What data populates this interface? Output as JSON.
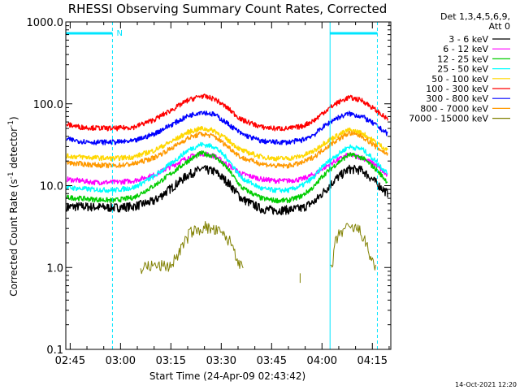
{
  "chart_data": {
    "type": "line",
    "title": "RHESSI Observing Summary Count Rates, Corrected",
    "xlabel": "Start Time (24-Apr-09 02:43:42)",
    "ylabel_main": "Corrected Count Rate (s",
    "ylabel_sup1": "-1",
    "ylabel_mid": " detector",
    "ylabel_sup2": "-1",
    "ylabel_end": ")",
    "yscale": "log",
    "ylim": [
      0.1,
      1000
    ],
    "xlim_minutes": [
      163.7,
      260.5
    ],
    "x_ticks": [
      {
        "label": "02:45",
        "minutes": 165
      },
      {
        "label": "03:00",
        "minutes": 180
      },
      {
        "label": "03:15",
        "minutes": 195
      },
      {
        "label": "03:30",
        "minutes": 210
      },
      {
        "label": "03:45",
        "minutes": 225
      },
      {
        "label": "04:00",
        "minutes": 240
      },
      {
        "label": "04:15",
        "minutes": 255
      }
    ],
    "y_ticks": [
      {
        "label": "0.1",
        "value": 0.1
      },
      {
        "label": "1.0",
        "value": 1
      },
      {
        "label": "10.0",
        "value": 10
      },
      {
        "label": "100.0",
        "value": 100
      },
      {
        "label": "1000.0",
        "value": 1000
      }
    ],
    "legend_header": [
      "Det 1,3,4,5,6,9,",
      "Att 0"
    ],
    "legend_position": "right",
    "flag_label": "N",
    "night_intervals_minutes": [
      [
        163.7,
        177.6
      ],
      [
        242.4,
        256.5
      ]
    ],
    "series": [
      {
        "name": "3 - 6 keV",
        "color": "#000000",
        "x": [
          164,
          168,
          172,
          178,
          184,
          190,
          196,
          200,
          204,
          208,
          212,
          216,
          222,
          226,
          230,
          234,
          238,
          240,
          244,
          248,
          252,
          256,
          259.6
        ],
        "y": [
          5.5,
          5.6,
          5.5,
          5.4,
          5.6,
          6.5,
          10,
          13.5,
          16,
          15,
          11,
          7,
          5.2,
          5.0,
          5.1,
          5.3,
          6.5,
          8,
          12,
          16,
          15.5,
          11,
          8
        ]
      },
      {
        "name": "6 - 12 keV",
        "color": "#ff00ff",
        "x": [
          164,
          168,
          172,
          178,
          184,
          190,
          196,
          200,
          204,
          208,
          212,
          216,
          222,
          226,
          230,
          234,
          238,
          240,
          244,
          248,
          252,
          256,
          259.6
        ],
        "y": [
          12,
          11.5,
          11,
          11,
          11.5,
          13.5,
          18,
          22,
          25,
          23,
          18,
          14,
          12,
          11.5,
          11.5,
          12,
          14,
          16,
          20,
          24,
          22,
          18,
          13
        ]
      },
      {
        "name": "12 - 25 keV",
        "color": "#00cc00",
        "x": [
          164,
          168,
          172,
          178,
          184,
          190,
          196,
          200,
          204,
          208,
          212,
          216,
          222,
          226,
          230,
          234,
          238,
          240,
          244,
          248,
          252,
          256,
          259.6
        ],
        "y": [
          7.2,
          7,
          6.8,
          6.6,
          7.2,
          10,
          15,
          20,
          25,
          23,
          16,
          9.5,
          7,
          6.6,
          6.6,
          7.5,
          10,
          13,
          18,
          24,
          22,
          16,
          11
        ]
      },
      {
        "name": "25 - 50 keV",
        "color": "#00ffff",
        "x": [
          164,
          168,
          172,
          178,
          184,
          190,
          196,
          200,
          204,
          208,
          212,
          216,
          222,
          226,
          230,
          234,
          238,
          240,
          244,
          248,
          252,
          256,
          259.6
        ],
        "y": [
          9.5,
          9.2,
          9,
          8.8,
          9.5,
          13,
          20,
          27,
          32,
          30,
          21,
          12.5,
          9.2,
          8.8,
          8.8,
          10,
          13,
          17,
          23,
          30,
          28,
          20,
          14
        ]
      },
      {
        "name": "50 - 100 keV",
        "color": "#ffd700",
        "x": [
          164,
          168,
          172,
          178,
          184,
          190,
          196,
          200,
          204,
          208,
          212,
          216,
          222,
          226,
          230,
          234,
          238,
          240,
          244,
          248,
          252,
          256,
          259.6
        ],
        "y": [
          23,
          22.5,
          22,
          21.5,
          22.5,
          27,
          36,
          45,
          50,
          47,
          36,
          27,
          22.5,
          21.5,
          21.5,
          23,
          27,
          32,
          40,
          48,
          44,
          34,
          27
        ]
      },
      {
        "name": "100 - 300 keV",
        "color": "#ff0000",
        "x": [
          164,
          168,
          172,
          178,
          184,
          190,
          196,
          200,
          204,
          208,
          212,
          216,
          222,
          226,
          230,
          234,
          238,
          240,
          244,
          248,
          252,
          256,
          259.6
        ],
        "y": [
          56,
          52,
          51,
          50,
          52,
          64,
          88,
          110,
          125,
          115,
          88,
          64,
          52,
          50,
          50,
          53,
          64,
          76,
          100,
          120,
          110,
          84,
          64
        ]
      },
      {
        "name": "300 - 800 keV",
        "color": "#0000ff",
        "x": [
          164,
          168,
          172,
          178,
          184,
          190,
          196,
          200,
          204,
          208,
          212,
          216,
          222,
          226,
          230,
          234,
          238,
          240,
          244,
          248,
          252,
          256,
          259.6
        ],
        "y": [
          37,
          35,
          34,
          34,
          35,
          43,
          58,
          71,
          80,
          74,
          57,
          43,
          35,
          34,
          34,
          36,
          43,
          51,
          66,
          76,
          70,
          55,
          43
        ]
      },
      {
        "name": "800 - 7000 keV",
        "color": "#ff9900",
        "x": [
          164,
          168,
          172,
          178,
          184,
          190,
          196,
          200,
          204,
          208,
          212,
          216,
          222,
          226,
          230,
          234,
          238,
          240,
          244,
          248,
          252,
          256,
          259.6
        ],
        "y": [
          19,
          18.5,
          18,
          17.5,
          18.5,
          22,
          30,
          38,
          43,
          40,
          30,
          22,
          18.5,
          17.5,
          17.5,
          19,
          23,
          27,
          35,
          44,
          40,
          30,
          24
        ]
      },
      {
        "name": "7000 - 15000 keV",
        "color": "#808000",
        "x": [
          186,
          189,
          195,
          199,
          201,
          203,
          205,
          207,
          209,
          211,
          213,
          214.5,
          216,
          219,
          221,
          233.5,
          243,
          244,
          245,
          246,
          247,
          248,
          250,
          251,
          252,
          253,
          254,
          256
        ],
        "y": [
          1.0,
          1.05,
          1.05,
          2.0,
          2.8,
          2.8,
          3.2,
          2.9,
          2.8,
          2.4,
          2.0,
          1.4,
          1.0,
          1.0,
          1.0,
          0.65,
          1.0,
          2.0,
          2.5,
          2.8,
          3.0,
          3.0,
          3.0,
          2.9,
          2.5,
          2.0,
          1.5,
          1.0
        ]
      }
    ]
  },
  "footer": {
    "date": "14-Oct-2021 12:20"
  }
}
